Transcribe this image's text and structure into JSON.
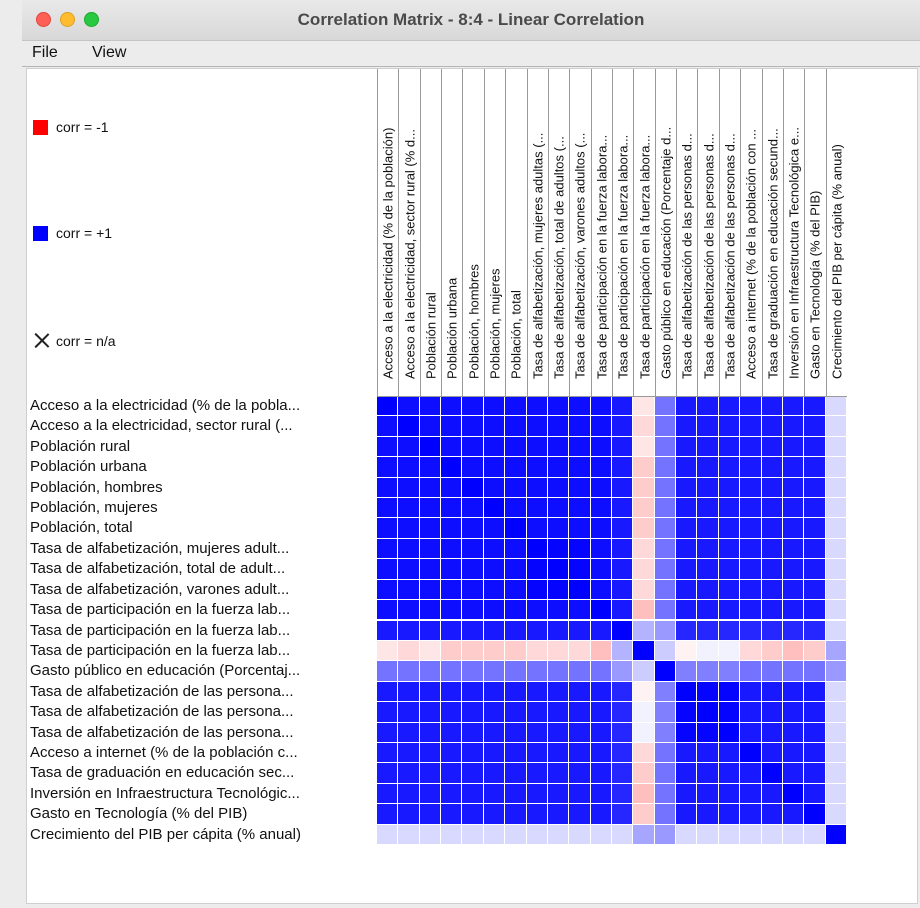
{
  "window": {
    "title": "Correlation Matrix - 8:4 - Linear Correlation",
    "menu": [
      "File",
      "View"
    ]
  },
  "legend": {
    "neg_label": "corr = -1",
    "pos_label": "corr = +1",
    "na_label": "corr = n/a",
    "neg_color": "#ff0000",
    "pos_color": "#0000ff"
  },
  "columns": [
    "Acceso a la electricidad (% de la población)",
    "Acceso a la electricidad, sector rural (% d...",
    "Población rural",
    "Población urbana",
    "Población, hombres",
    "Población, mujeres",
    "Población, total",
    "Tasa de alfabetización, mujeres adultas (...",
    "Tasa de alfabetización, total de adultos (...",
    "Tasa de alfabetización, varones adultos (...",
    "Tasa de participación en la fuerza labora...",
    "Tasa de participación en la fuerza labora...",
    "Tasa de participación en la fuerza labora...",
    "Gasto público en educación (Porcentaje d...",
    "Tasa de alfabetización de las personas d...",
    "Tasa de alfabetización de las personas d...",
    "Tasa de alfabetización de las personas d...",
    "Acceso a internet (% de la población con ...",
    "Tasa de graduación en educación secund...",
    "Inversión en Infraestructura Tecnológica e...",
    "Gasto en Tecnología (% del PIB)",
    "Crecimiento del PIB per cápita (% anual)"
  ],
  "rows": [
    "Acceso a la electricidad (% de la pobla...",
    "Acceso a la electricidad, sector rural (...",
    "Población rural",
    "Población urbana",
    "Población, hombres",
    "Población, mujeres",
    "Población, total",
    "Tasa de alfabetización, mujeres adult...",
    "Tasa de alfabetización, total de adult...",
    "Tasa de alfabetización, varones adult...",
    "Tasa de participación en la fuerza lab...",
    "Tasa de participación en la fuerza lab...",
    "Tasa de participación en la fuerza lab...",
    "Gasto público en educación (Porcentaj...",
    "Tasa de alfabetización de las persona...",
    "Tasa de alfabetización de las persona...",
    "Tasa de alfabetización de las persona...",
    "Acceso a internet (% de la población c...",
    "Tasa de graduación en educación sec...",
    "Inversión en Infraestructura Tecnológic...",
    "Gasto en Tecnología (% del PIB)",
    "Crecimiento del PIB per cápita (% anual)"
  ],
  "chart_data": {
    "type": "heatmap",
    "scale_min": -1,
    "scale_max": 1,
    "values": [
      [
        1,
        0.95,
        0.95,
        0.95,
        0.95,
        0.95,
        0.95,
        0.95,
        0.95,
        0.95,
        0.95,
        0.9,
        -0.1,
        0.55,
        0.9,
        0.9,
        0.9,
        0.9,
        0.9,
        0.9,
        0.9,
        0.15
      ],
      [
        0.95,
        1,
        0.95,
        0.95,
        0.95,
        0.95,
        0.95,
        0.95,
        0.95,
        0.95,
        0.95,
        0.9,
        -0.15,
        0.55,
        0.9,
        0.9,
        0.9,
        0.9,
        0.9,
        0.9,
        0.9,
        0.15
      ],
      [
        0.95,
        0.95,
        1,
        0.95,
        0.95,
        0.95,
        0.95,
        0.95,
        0.95,
        0.95,
        0.95,
        0.9,
        -0.1,
        0.55,
        0.9,
        0.9,
        0.9,
        0.9,
        0.9,
        0.9,
        0.9,
        0.15
      ],
      [
        0.95,
        0.95,
        0.95,
        1,
        0.95,
        0.95,
        0.95,
        0.95,
        0.95,
        0.95,
        0.95,
        0.9,
        -0.2,
        0.55,
        0.9,
        0.9,
        0.9,
        0.9,
        0.9,
        0.9,
        0.9,
        0.15
      ],
      [
        0.95,
        0.95,
        0.95,
        0.95,
        1,
        0.95,
        0.95,
        0.95,
        0.95,
        0.95,
        0.95,
        0.9,
        -0.2,
        0.55,
        0.9,
        0.9,
        0.9,
        0.9,
        0.9,
        0.9,
        0.9,
        0.15
      ],
      [
        0.95,
        0.95,
        0.95,
        0.95,
        0.95,
        1,
        0.95,
        0.95,
        0.95,
        0.95,
        0.95,
        0.9,
        -0.2,
        0.55,
        0.9,
        0.9,
        0.9,
        0.9,
        0.9,
        0.9,
        0.9,
        0.15
      ],
      [
        0.95,
        0.95,
        0.95,
        0.95,
        0.95,
        0.95,
        1,
        0.95,
        0.95,
        0.95,
        0.95,
        0.9,
        -0.2,
        0.55,
        0.9,
        0.9,
        0.9,
        0.9,
        0.9,
        0.9,
        0.9,
        0.15
      ],
      [
        0.95,
        0.95,
        0.95,
        0.95,
        0.95,
        0.95,
        0.95,
        1,
        0.98,
        0.98,
        0.95,
        0.9,
        -0.15,
        0.55,
        0.9,
        0.9,
        0.9,
        0.9,
        0.9,
        0.9,
        0.9,
        0.15
      ],
      [
        0.95,
        0.95,
        0.95,
        0.95,
        0.95,
        0.95,
        0.95,
        0.98,
        1,
        0.98,
        0.95,
        0.9,
        -0.15,
        0.55,
        0.9,
        0.9,
        0.9,
        0.9,
        0.9,
        0.9,
        0.9,
        0.15
      ],
      [
        0.95,
        0.95,
        0.95,
        0.95,
        0.95,
        0.95,
        0.95,
        0.98,
        0.98,
        1,
        0.95,
        0.9,
        -0.15,
        0.55,
        0.9,
        0.9,
        0.9,
        0.9,
        0.9,
        0.9,
        0.9,
        0.15
      ],
      [
        0.95,
        0.95,
        0.95,
        0.95,
        0.95,
        0.95,
        0.95,
        0.95,
        0.95,
        0.95,
        1,
        0.9,
        -0.25,
        0.55,
        0.9,
        0.9,
        0.9,
        0.9,
        0.9,
        0.9,
        0.9,
        0.15
      ],
      [
        0.9,
        0.9,
        0.9,
        0.9,
        0.9,
        0.9,
        0.9,
        0.9,
        0.9,
        0.9,
        0.9,
        1,
        0.3,
        0.4,
        0.85,
        0.85,
        0.85,
        0.85,
        0.85,
        0.85,
        0.85,
        0.15
      ],
      [
        -0.1,
        -0.15,
        -0.1,
        -0.2,
        -0.2,
        -0.2,
        -0.2,
        -0.15,
        -0.15,
        -0.15,
        -0.25,
        0.3,
        1,
        0.2,
        -0.05,
        0.05,
        0.05,
        -0.15,
        -0.2,
        -0.25,
        -0.2,
        0.35
      ],
      [
        0.55,
        0.55,
        0.55,
        0.55,
        0.55,
        0.55,
        0.55,
        0.55,
        0.55,
        0.55,
        0.55,
        0.4,
        0.2,
        1,
        0.5,
        0.5,
        0.5,
        0.55,
        0.55,
        0.55,
        0.55,
        0.4
      ],
      [
        0.9,
        0.9,
        0.9,
        0.9,
        0.9,
        0.9,
        0.9,
        0.9,
        0.9,
        0.9,
        0.9,
        0.85,
        -0.05,
        0.5,
        1,
        0.98,
        0.98,
        0.9,
        0.9,
        0.9,
        0.9,
        0.15
      ],
      [
        0.9,
        0.9,
        0.9,
        0.9,
        0.9,
        0.9,
        0.9,
        0.9,
        0.9,
        0.9,
        0.9,
        0.85,
        0.05,
        0.5,
        0.98,
        1,
        0.98,
        0.9,
        0.9,
        0.9,
        0.9,
        0.15
      ],
      [
        0.9,
        0.9,
        0.9,
        0.9,
        0.9,
        0.9,
        0.9,
        0.9,
        0.9,
        0.9,
        0.9,
        0.85,
        0.05,
        0.5,
        0.98,
        0.98,
        1,
        0.9,
        0.9,
        0.9,
        0.9,
        0.15
      ],
      [
        0.9,
        0.9,
        0.9,
        0.9,
        0.9,
        0.9,
        0.9,
        0.9,
        0.9,
        0.9,
        0.9,
        0.85,
        -0.15,
        0.55,
        0.9,
        0.9,
        0.9,
        1,
        0.9,
        0.9,
        0.9,
        0.15
      ],
      [
        0.9,
        0.9,
        0.9,
        0.9,
        0.9,
        0.9,
        0.9,
        0.9,
        0.9,
        0.9,
        0.9,
        0.85,
        -0.2,
        0.55,
        0.9,
        0.9,
        0.9,
        0.9,
        1,
        0.9,
        0.9,
        0.15
      ],
      [
        0.9,
        0.9,
        0.9,
        0.9,
        0.9,
        0.9,
        0.9,
        0.9,
        0.9,
        0.9,
        0.9,
        0.85,
        -0.25,
        0.55,
        0.9,
        0.9,
        0.9,
        0.9,
        0.9,
        1,
        0.9,
        0.15
      ],
      [
        0.9,
        0.9,
        0.9,
        0.9,
        0.9,
        0.9,
        0.9,
        0.9,
        0.9,
        0.9,
        0.9,
        0.85,
        -0.2,
        0.55,
        0.9,
        0.9,
        0.9,
        0.9,
        0.9,
        0.9,
        1,
        0.15
      ],
      [
        0.15,
        0.15,
        0.15,
        0.15,
        0.15,
        0.15,
        0.15,
        0.15,
        0.15,
        0.15,
        0.15,
        0.15,
        0.35,
        0.4,
        0.15,
        0.15,
        0.15,
        0.15,
        0.15,
        0.15,
        0.15,
        1
      ]
    ]
  }
}
